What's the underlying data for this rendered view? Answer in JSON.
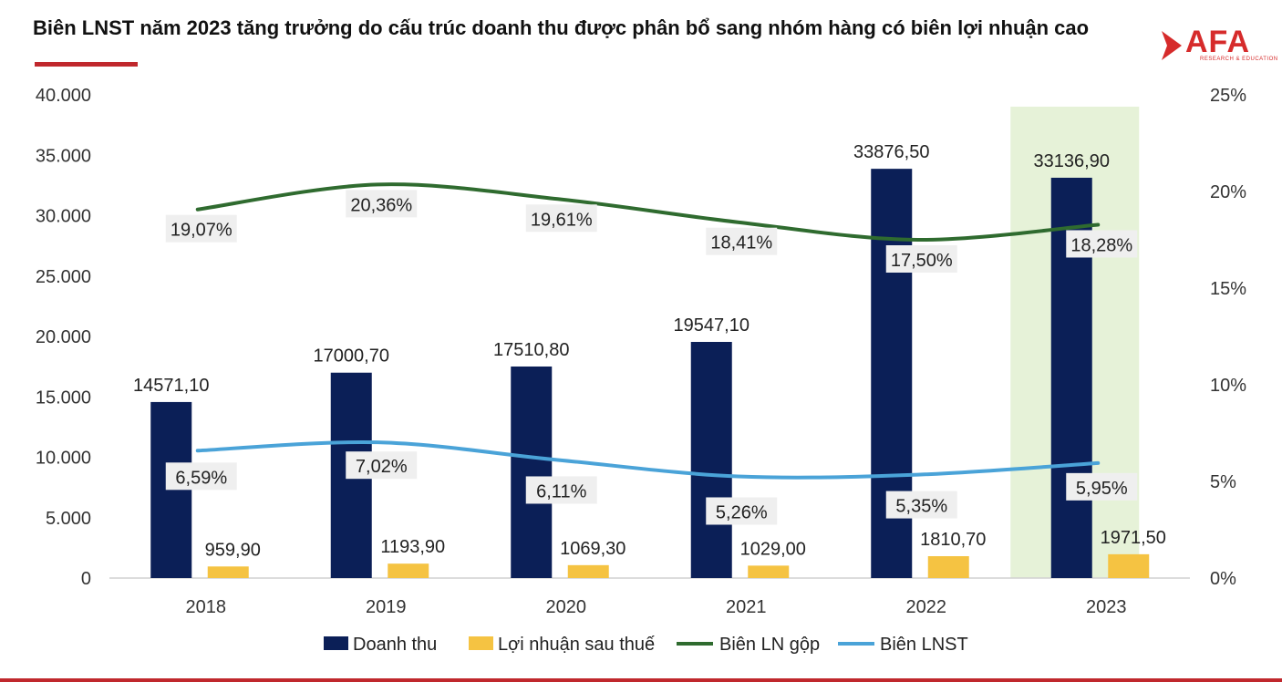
{
  "title": "Biên LNST năm 2023 tăng trưởng do cấu trúc doanh thu được phân bổ sang nhóm hàng có biên lợi nhuận cao",
  "logo": {
    "text": "AFA",
    "subtext": "RESEARCH & EDUCATION",
    "color": "#d62b2b"
  },
  "colors": {
    "revenue": "#0b1f57",
    "profit": "#f5c342",
    "gross": "#2f6b2f",
    "net": "#4aa3d8",
    "highlight": "#e6f2d8",
    "label_bg": "#efefef"
  },
  "chart_data": {
    "type": "bar",
    "categories": [
      "2018",
      "2019",
      "2020",
      "2021",
      "2022",
      "2023"
    ],
    "y_left": {
      "min": 0,
      "max": 40000,
      "ticks": [
        "0",
        "5.000",
        "10.000",
        "15.000",
        "20.000",
        "25.000",
        "30.000",
        "35.000",
        "40.000"
      ]
    },
    "y_right": {
      "min": 0,
      "max": 25,
      "ticks": [
        "0%",
        "5%",
        "10%",
        "15%",
        "20%",
        "25%"
      ]
    },
    "highlight_category": "2023",
    "series": [
      {
        "name": "Doanh thu",
        "type": "bar",
        "axis": "left",
        "values": [
          14571.1,
          17000.7,
          17510.8,
          19547.1,
          33876.5,
          33136.9
        ],
        "labels": [
          "14571,10",
          "17000,70",
          "17510,80",
          "19547,10",
          "33876,50",
          "33136,90"
        ]
      },
      {
        "name": "Lợi nhuận sau thuế",
        "type": "bar",
        "axis": "left",
        "values": [
          959.9,
          1193.9,
          1069.3,
          1029.0,
          1810.7,
          1971.5
        ],
        "labels": [
          "959,90",
          "1193,90",
          "1069,30",
          "1029,00",
          "1810,70",
          "1971,50"
        ]
      },
      {
        "name": "Biên LN gộp",
        "type": "line",
        "axis": "right",
        "values": [
          19.07,
          20.36,
          19.61,
          18.41,
          17.5,
          18.28
        ],
        "labels": [
          "19,07%",
          "20,36%",
          "19,61%",
          "18,41%",
          "17,50%",
          "18,28%"
        ]
      },
      {
        "name": "Biên LNST",
        "type": "line",
        "axis": "right",
        "values": [
          6.59,
          7.02,
          6.11,
          5.26,
          5.35,
          5.95
        ],
        "labels": [
          "6,59%",
          "7,02%",
          "6,11%",
          "5,26%",
          "5,35%",
          "5,95%"
        ]
      }
    ],
    "legend_position": "bottom"
  }
}
